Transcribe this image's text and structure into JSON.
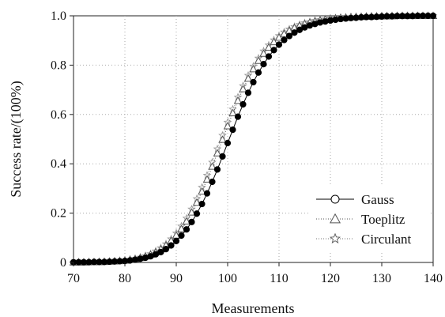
{
  "chart_data": {
    "type": "line",
    "title": "",
    "xlabel": "Measurements",
    "ylabel": "Success rate/(100%)",
    "xlim": [
      70,
      140
    ],
    "ylim": [
      0,
      1
    ],
    "x_ticks": [
      70,
      80,
      90,
      100,
      110,
      120,
      130,
      140
    ],
    "y_ticks": [
      0,
      0.2,
      0.4,
      0.6,
      0.8,
      1.0
    ],
    "y_tick_labels": [
      "0",
      "0.2",
      "0.4",
      "0.6",
      "0.8",
      "1.0"
    ],
    "grid": true,
    "legend_position": "bottom-right",
    "x": [
      70,
      71,
      72,
      73,
      74,
      75,
      76,
      77,
      78,
      79,
      80,
      81,
      82,
      83,
      84,
      85,
      86,
      87,
      88,
      89,
      90,
      91,
      92,
      93,
      94,
      95,
      96,
      97,
      98,
      99,
      100,
      101,
      102,
      103,
      104,
      105,
      106,
      107,
      108,
      109,
      110,
      111,
      112,
      113,
      114,
      115,
      116,
      117,
      118,
      119,
      120,
      121,
      122,
      123,
      124,
      125,
      126,
      127,
      128,
      129,
      130,
      131,
      132,
      133,
      134,
      135,
      136,
      137,
      138,
      139,
      140
    ],
    "series": [
      {
        "name": "Gauss",
        "marker": "circle",
        "line_style": "solid",
        "color": "#000000",
        "values": [
          0.001,
          0.001,
          0.001,
          0.001,
          0.002,
          0.002,
          0.002,
          0.003,
          0.004,
          0.005,
          0.006,
          0.008,
          0.011,
          0.015,
          0.019,
          0.025,
          0.033,
          0.042,
          0.054,
          0.069,
          0.087,
          0.109,
          0.134,
          0.164,
          0.198,
          0.237,
          0.28,
          0.327,
          0.377,
          0.43,
          0.484,
          0.538,
          0.591,
          0.641,
          0.688,
          0.731,
          0.77,
          0.804,
          0.835,
          0.861,
          0.883,
          0.902,
          0.918,
          0.932,
          0.943,
          0.953,
          0.961,
          0.967,
          0.973,
          0.977,
          0.981,
          0.984,
          0.987,
          0.989,
          0.991,
          0.992,
          0.994,
          0.995,
          0.995,
          0.996,
          0.997,
          0.998,
          0.998,
          0.999,
          0.999,
          0.999,
          0.999,
          1.0,
          1.0,
          1.0,
          1.0
        ]
      },
      {
        "name": "Toeplitz",
        "marker": "triangle",
        "line_style": "dotted",
        "color": "#555555",
        "values": [
          0.001,
          0.001,
          0.001,
          0.002,
          0.002,
          0.002,
          0.003,
          0.004,
          0.005,
          0.006,
          0.008,
          0.011,
          0.014,
          0.019,
          0.025,
          0.032,
          0.042,
          0.054,
          0.069,
          0.088,
          0.11,
          0.136,
          0.167,
          0.203,
          0.243,
          0.288,
          0.337,
          0.389,
          0.443,
          0.498,
          0.553,
          0.606,
          0.656,
          0.703,
          0.746,
          0.784,
          0.818,
          0.847,
          0.872,
          0.894,
          0.912,
          0.927,
          0.94,
          0.951,
          0.96,
          0.967,
          0.973,
          0.978,
          0.982,
          0.985,
          0.988,
          0.99,
          0.992,
          0.993,
          0.995,
          0.996,
          0.996,
          0.997,
          0.998,
          0.998,
          0.999,
          0.999,
          0.999,
          1.0,
          1.0,
          1.0,
          1.0,
          1.0,
          1.0,
          1.0,
          1.0
        ]
      },
      {
        "name": "Circulant",
        "marker": "star",
        "line_style": "dotted",
        "color": "#999999",
        "values": [
          0.001,
          0.001,
          0.001,
          0.002,
          0.002,
          0.003,
          0.003,
          0.004,
          0.005,
          0.007,
          0.009,
          0.012,
          0.016,
          0.021,
          0.027,
          0.035,
          0.046,
          0.059,
          0.075,
          0.095,
          0.119,
          0.147,
          0.179,
          0.216,
          0.258,
          0.304,
          0.353,
          0.406,
          0.46,
          0.515,
          0.568,
          0.621,
          0.67,
          0.716,
          0.758,
          0.795,
          0.828,
          0.857,
          0.881,
          0.902,
          0.919,
          0.934,
          0.946,
          0.956,
          0.964,
          0.971,
          0.976,
          0.981,
          0.984,
          0.987,
          0.99,
          0.991,
          0.993,
          0.994,
          0.995,
          0.996,
          0.997,
          0.998,
          0.998,
          0.999,
          0.999,
          0.999,
          1.0,
          1.0,
          1.0,
          1.0,
          1.0,
          1.0,
          1.0,
          1.0,
          1.0
        ]
      }
    ]
  }
}
